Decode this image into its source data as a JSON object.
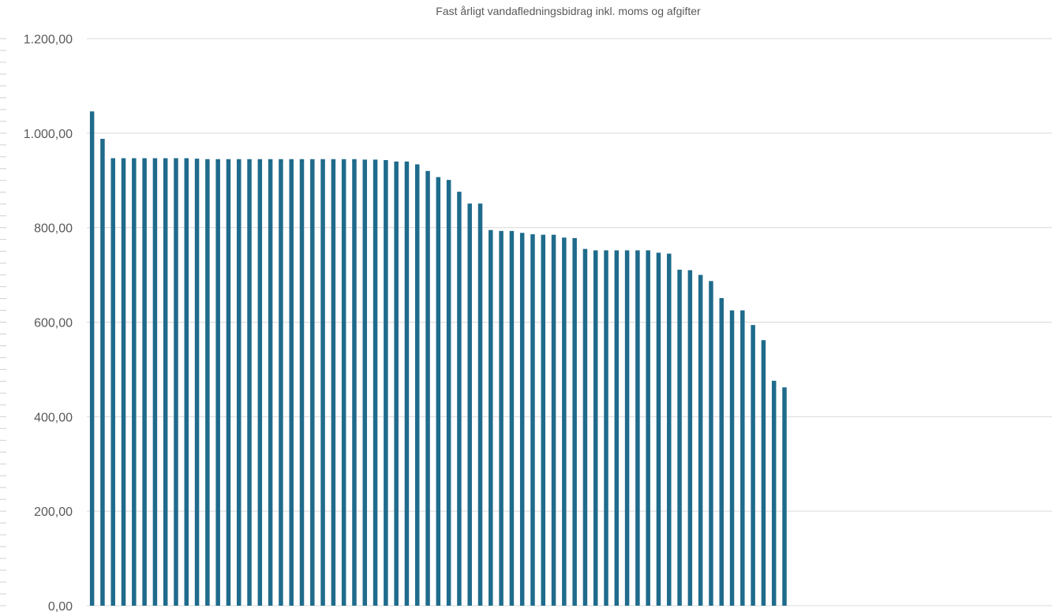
{
  "chart_data": {
    "type": "bar",
    "title": "Fast årligt vandafledningsbidrag inkl. moms og afgifter",
    "xlabel": "",
    "ylabel": "",
    "ylim": [
      0,
      1200
    ],
    "y_ticks": [
      0,
      200,
      400,
      600,
      800,
      1000,
      1200
    ],
    "y_tick_labels": [
      "0,00",
      "200,00",
      "400,00",
      "600,00",
      "800,00",
      "1.000,00",
      "1.200,00"
    ],
    "grid": true,
    "legend": "none",
    "category_slots": 92,
    "bar_color": "#1F6B8C",
    "values": [
      1046,
      988,
      947,
      947,
      947,
      947,
      947,
      947,
      947,
      947,
      946,
      945,
      945,
      945,
      945,
      945,
      945,
      945,
      945,
      945,
      945,
      945,
      945,
      945,
      945,
      945,
      944,
      944,
      943,
      940,
      940,
      934,
      920,
      907,
      901,
      876,
      851,
      851,
      795,
      793,
      793,
      789,
      786,
      785,
      785,
      779,
      778,
      755,
      752,
      752,
      752,
      752,
      752,
      752,
      747,
      745,
      711,
      710,
      700,
      687,
      651,
      625,
      625,
      594,
      562,
      476,
      462
    ]
  }
}
